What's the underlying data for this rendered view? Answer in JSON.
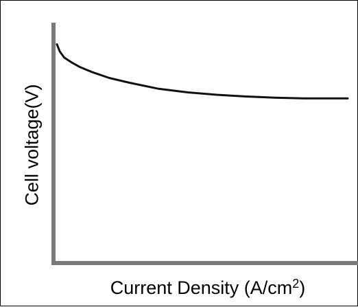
{
  "chart_data": {
    "type": "line",
    "title": "",
    "xlabel": {
      "text": "Current Density (A/cm",
      "superscript": "2",
      "suffix": ")"
    },
    "ylabel": "Cell voltage(V)",
    "grid": false,
    "legend": "none",
    "xlim": [
      0,
      1
    ],
    "ylim": [
      0,
      1
    ],
    "series": [
      {
        "color": "#111111",
        "x": [
          0,
          0.01,
          0.025,
          0.05,
          0.08,
          0.12,
          0.18,
          0.25,
          0.35,
          0.45,
          0.55,
          0.65,
          0.75,
          0.85,
          1.0
        ],
        "y": [
          0.91,
          0.88,
          0.855,
          0.835,
          0.815,
          0.795,
          0.77,
          0.75,
          0.725,
          0.71,
          0.7,
          0.693,
          0.688,
          0.685,
          0.685
        ]
      }
    ]
  }
}
